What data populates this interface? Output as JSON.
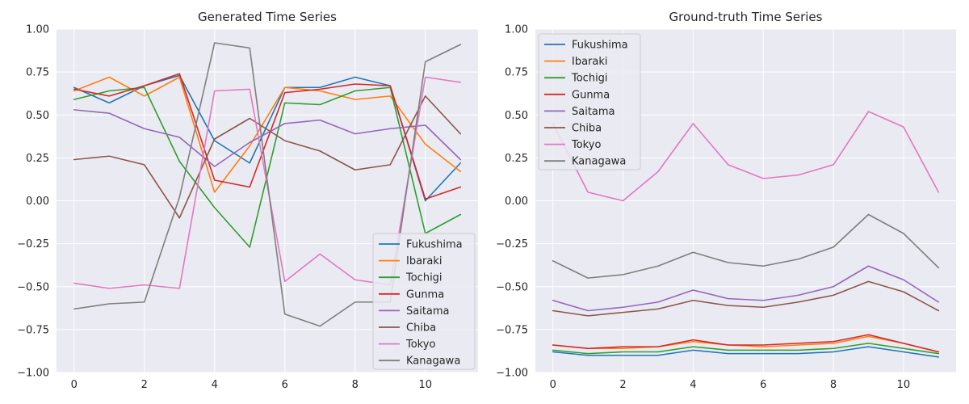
{
  "chart_data": [
    {
      "type": "line",
      "title": "Generated Time Series",
      "xlabel": "",
      "ylabel": "",
      "xlim": [
        -0.5,
        11.5
      ],
      "ylim": [
        -1.0,
        1.0
      ],
      "xticks": [
        0,
        2,
        4,
        6,
        8,
        10
      ],
      "xtick_labels": [
        "0",
        "2",
        "4",
        "6",
        "8",
        "10"
      ],
      "yticks": [
        -1.0,
        -0.75,
        -0.5,
        -0.25,
        0.0,
        0.25,
        0.5,
        0.75,
        1.0
      ],
      "ytick_labels": [
        "−1.00",
        "−0.75",
        "−0.50",
        "−0.25",
        "0.00",
        "0.25",
        "0.50",
        "0.75",
        "1.00"
      ],
      "grid": true,
      "legend_position": "lower-right",
      "x": [
        0,
        1,
        2,
        3,
        4,
        5,
        6,
        7,
        8,
        9,
        10,
        11
      ],
      "series": [
        {
          "name": "Fukushima",
          "color": "#1f77b4",
          "values": [
            0.66,
            0.57,
            0.67,
            0.73,
            0.35,
            0.22,
            0.66,
            0.66,
            0.72,
            0.67,
            0.0,
            0.22
          ]
        },
        {
          "name": "Ibaraki",
          "color": "#ff7f0e",
          "values": [
            0.64,
            0.72,
            0.61,
            0.72,
            0.05,
            0.32,
            0.66,
            0.64,
            0.59,
            0.61,
            0.33,
            0.17
          ]
        },
        {
          "name": "Tochigi",
          "color": "#2ca02c",
          "values": [
            0.59,
            0.64,
            0.66,
            0.23,
            -0.04,
            -0.27,
            0.57,
            0.56,
            0.64,
            0.66,
            -0.19,
            -0.08
          ]
        },
        {
          "name": "Gunma",
          "color": "#d62728",
          "values": [
            0.65,
            0.61,
            0.67,
            0.74,
            0.12,
            0.08,
            0.63,
            0.65,
            0.68,
            0.67,
            0.01,
            0.08
          ]
        },
        {
          "name": "Saitama",
          "color": "#9467bd",
          "values": [
            0.53,
            0.51,
            0.42,
            0.37,
            0.2,
            0.34,
            0.45,
            0.47,
            0.39,
            0.42,
            0.44,
            0.24
          ]
        },
        {
          "name": "Chiba",
          "color": "#8c564b",
          "values": [
            0.24,
            0.26,
            0.21,
            -0.1,
            0.36,
            0.48,
            0.35,
            0.29,
            0.18,
            0.21,
            0.61,
            0.39
          ]
        },
        {
          "name": "Tokyo",
          "color": "#e377c2",
          "values": [
            -0.48,
            -0.51,
            -0.49,
            -0.51,
            0.64,
            0.65,
            -0.47,
            -0.31,
            -0.46,
            -0.49,
            0.72,
            0.69
          ]
        },
        {
          "name": "Kanagawa",
          "color": "#7f7f7f",
          "values": [
            -0.63,
            -0.6,
            -0.59,
            0.02,
            0.92,
            0.89,
            -0.66,
            -0.73,
            -0.59,
            -0.59,
            0.81,
            0.91
          ]
        }
      ]
    },
    {
      "type": "line",
      "title": "Ground-truth Time Series",
      "xlabel": "",
      "ylabel": "",
      "xlim": [
        -0.5,
        11.5
      ],
      "ylim": [
        -1.0,
        1.0
      ],
      "xticks": [
        0,
        2,
        4,
        6,
        8,
        10
      ],
      "xtick_labels": [
        "0",
        "2",
        "4",
        "6",
        "8",
        "10"
      ],
      "yticks": [
        -1.0,
        -0.75,
        -0.5,
        -0.25,
        0.0,
        0.25,
        0.5,
        0.75,
        1.0
      ],
      "ytick_labels": [
        "−1.00",
        "−0.75",
        "−0.50",
        "−0.25",
        "0.00",
        "0.25",
        "0.50",
        "0.75",
        "1.00"
      ],
      "grid": true,
      "legend_position": "upper-left",
      "x": [
        0,
        1,
        2,
        3,
        4,
        5,
        6,
        7,
        8,
        9,
        10,
        11
      ],
      "series": [
        {
          "name": "Fukushima",
          "color": "#1f77b4",
          "values": [
            -0.88,
            -0.9,
            -0.9,
            -0.9,
            -0.87,
            -0.89,
            -0.89,
            -0.89,
            -0.88,
            -0.85,
            -0.88,
            -0.91
          ]
        },
        {
          "name": "Ibaraki",
          "color": "#ff7f0e",
          "values": [
            -0.84,
            -0.86,
            -0.86,
            -0.85,
            -0.82,
            -0.84,
            -0.85,
            -0.84,
            -0.83,
            -0.79,
            -0.83,
            -0.88
          ]
        },
        {
          "name": "Tochigi",
          "color": "#2ca02c",
          "values": [
            -0.87,
            -0.89,
            -0.88,
            -0.88,
            -0.85,
            -0.87,
            -0.87,
            -0.87,
            -0.86,
            -0.83,
            -0.86,
            -0.89
          ]
        },
        {
          "name": "Gunma",
          "color": "#d62728",
          "values": [
            -0.84,
            -0.86,
            -0.85,
            -0.85,
            -0.81,
            -0.84,
            -0.84,
            -0.83,
            -0.82,
            -0.78,
            -0.83,
            -0.88
          ]
        },
        {
          "name": "Saitama",
          "color": "#9467bd",
          "values": [
            -0.58,
            -0.64,
            -0.62,
            -0.59,
            -0.52,
            -0.57,
            -0.58,
            -0.55,
            -0.5,
            -0.38,
            -0.46,
            -0.59
          ]
        },
        {
          "name": "Chiba",
          "color": "#8c564b",
          "values": [
            -0.64,
            -0.67,
            -0.65,
            -0.63,
            -0.58,
            -0.61,
            -0.62,
            -0.59,
            -0.55,
            -0.47,
            -0.53,
            -0.64
          ]
        },
        {
          "name": "Tokyo",
          "color": "#e377c2",
          "values": [
            0.45,
            0.05,
            0.0,
            0.17,
            0.45,
            0.21,
            0.13,
            0.15,
            0.21,
            0.52,
            0.43,
            0.05
          ]
        },
        {
          "name": "Kanagawa",
          "color": "#7f7f7f",
          "values": [
            -0.35,
            -0.45,
            -0.43,
            -0.38,
            -0.3,
            -0.36,
            -0.38,
            -0.34,
            -0.27,
            -0.08,
            -0.19,
            -0.39
          ]
        }
      ]
    }
  ]
}
